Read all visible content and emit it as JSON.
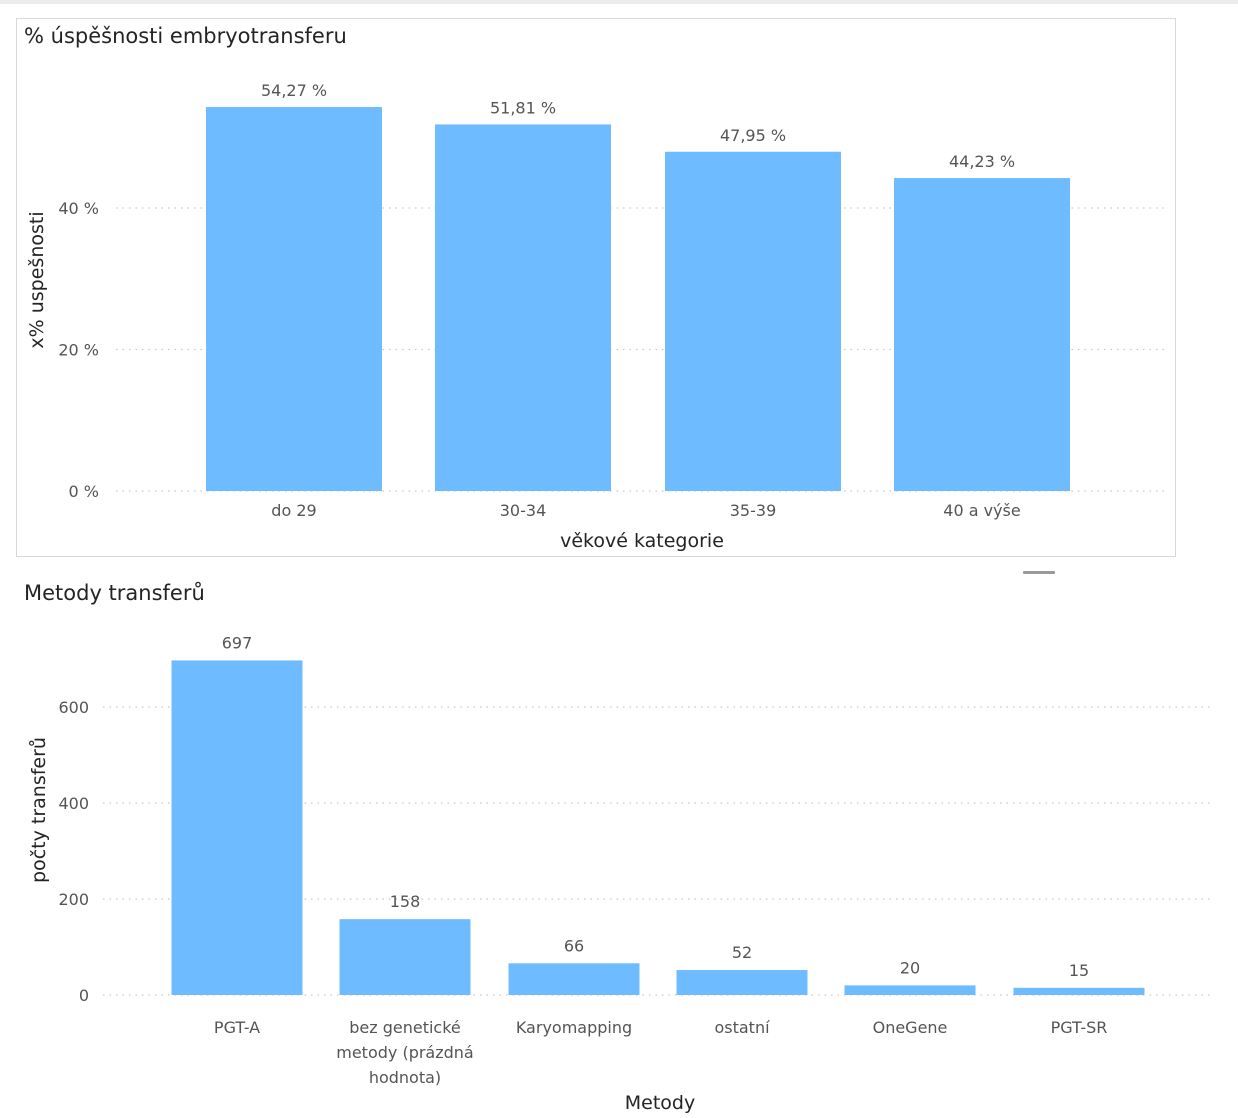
{
  "chart_data": [
    {
      "type": "bar",
      "title": "% úspěšnosti embryotransferu",
      "xlabel": "věkové kategorie",
      "ylabel": "x% uspešnosti",
      "categories": [
        "do 29",
        "30-34",
        "35-39",
        "40 a výše"
      ],
      "values": [
        54.27,
        51.81,
        47.95,
        44.23
      ],
      "value_labels": [
        "54,27 %",
        "51,81 %",
        "47,95 %",
        "44,23 %"
      ],
      "yticks": [
        0,
        20,
        40
      ],
      "ytick_labels": [
        "0 %",
        "20 %",
        "40 %"
      ],
      "ylim": [
        0,
        56
      ],
      "grid": true,
      "color": "#6fbbff"
    },
    {
      "type": "bar",
      "title": "Metody transferů",
      "xlabel": "Metody",
      "ylabel": "počty transferů",
      "categories": [
        [
          "PGT-A"
        ],
        [
          "bez genetické",
          "metody (prázdná",
          "hodnota)"
        ],
        [
          "Karyomapping"
        ],
        [
          "ostatní"
        ],
        [
          "OneGene"
        ],
        [
          "PGT-SR"
        ]
      ],
      "values": [
        697,
        158,
        66,
        52,
        20,
        15
      ],
      "value_labels": [
        "697",
        "158",
        "66",
        "52",
        "20",
        "15"
      ],
      "yticks": [
        0,
        200,
        400,
        600
      ],
      "ytick_labels": [
        "0",
        "200",
        "400",
        "600"
      ],
      "ylim": [
        0,
        720
      ],
      "grid": true,
      "color": "#6fbbff"
    }
  ]
}
